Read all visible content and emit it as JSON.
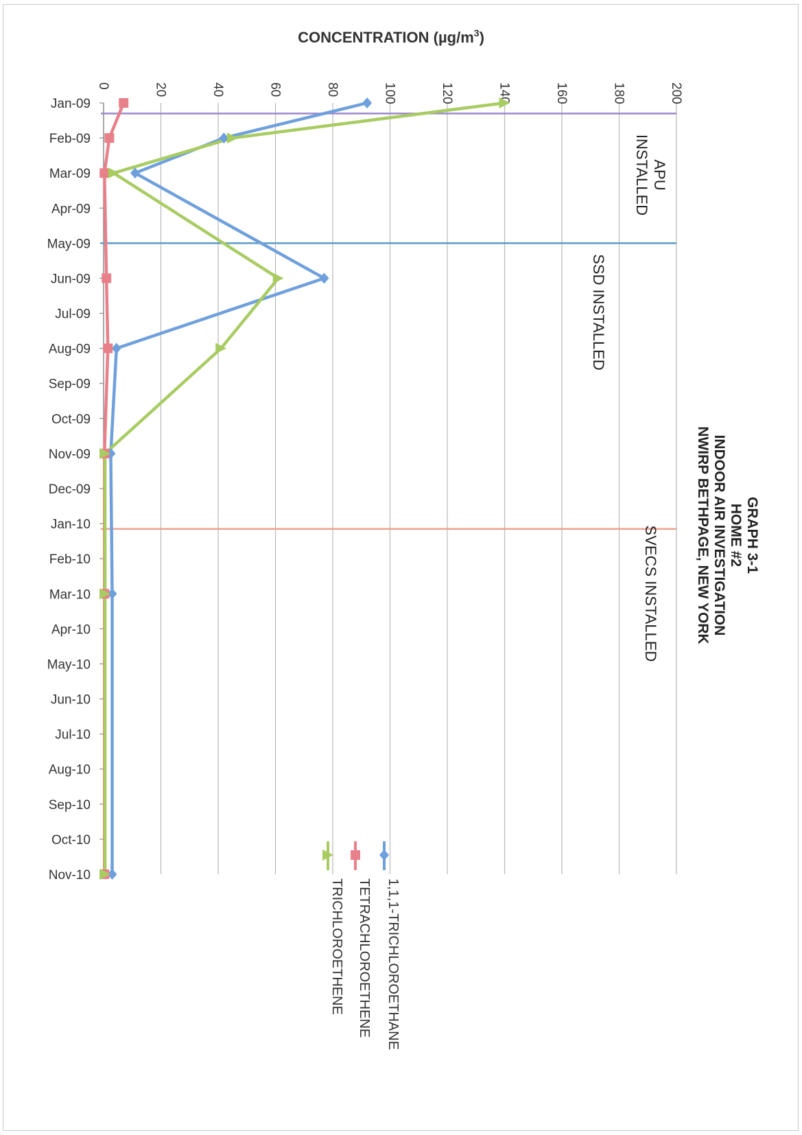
{
  "chart_data": {
    "type": "line",
    "title_lines": [
      "GRAPH 3-1",
      "HOME #2",
      "INDOOR AIR INVESTIGATION",
      "NWIRP BETHPAGE, NEW YORK"
    ],
    "ylabel_prefix": "CONCENTRATION (µg/m",
    "ylabel_sup": "3",
    "ylabel_suffix": ")",
    "xlabel": "",
    "categories": [
      "Jan-09",
      "Feb-09",
      "Mar-09",
      "Apr-09",
      "May-09",
      "Jun-09",
      "Jul-09",
      "Aug-09",
      "Sep-09",
      "Oct-09",
      "Nov-09",
      "Dec-09",
      "Jan-10",
      "Feb-10",
      "Mar-10",
      "Apr-10",
      "May-10",
      "Jun-10",
      "Jul-10",
      "Aug-10",
      "Sep-10",
      "Oct-10",
      "Nov-10"
    ],
    "y_ticks": [
      "0",
      "20",
      "40",
      "60",
      "80",
      "100",
      "120",
      "140",
      "160",
      "180",
      "200"
    ],
    "ylim": [
      0,
      200
    ],
    "grid": true,
    "legend_position": "bottom",
    "series": [
      {
        "name": "1,1,1-TRICHLOROETHANE",
        "color": "#6fa0dc",
        "marker": "diamond",
        "points": [
          [
            0,
            92
          ],
          [
            1,
            42
          ],
          [
            2,
            11
          ],
          [
            5,
            77
          ],
          [
            7,
            4.5
          ],
          [
            10,
            2.5
          ],
          [
            14,
            3
          ],
          [
            22,
            3
          ]
        ]
      },
      {
        "name": "TETRACHLOROETHENE",
        "color": "#e8808a",
        "marker": "square",
        "points": [
          [
            0,
            7
          ],
          [
            1,
            2
          ],
          [
            2,
            0.3
          ],
          [
            5,
            1
          ],
          [
            7,
            1.5
          ],
          [
            10,
            0.3
          ],
          [
            14,
            0.3
          ],
          [
            22,
            0.3
          ]
        ]
      },
      {
        "name": "TRICHLOROETHENE",
        "color": "#a8cc62",
        "marker": "triangle",
        "points": [
          [
            0,
            140
          ],
          [
            1,
            45
          ],
          [
            2,
            3.5
          ],
          [
            5,
            61
          ],
          [
            7,
            41
          ],
          [
            10,
            0.5
          ],
          [
            14,
            0.5
          ],
          [
            22,
            0.5
          ]
        ]
      }
    ],
    "annotations": [
      {
        "label_lines": [
          "APU",
          "INSTALLED"
        ],
        "at": 0.3,
        "color": "#9b88cc"
      },
      {
        "label_lines": [
          "SSD INSTALLED"
        ],
        "at": 4.0,
        "color": "#5b9bc8"
      },
      {
        "label_lines": [
          "SVECS INSTALLED"
        ],
        "at": 12.15,
        "color": "#f0a090"
      }
    ]
  }
}
